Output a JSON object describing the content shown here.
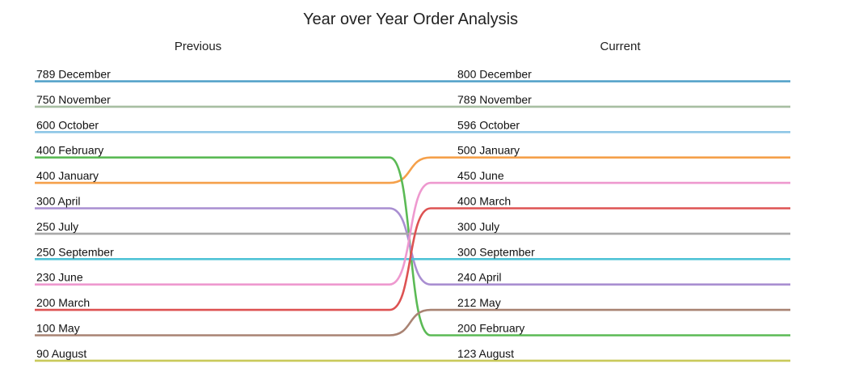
{
  "chart_data": {
    "type": "slope",
    "title": "Year over Year Order Analysis",
    "left_header": "Previous",
    "right_header": "Current",
    "series": [
      {
        "name": "December",
        "previous": 789,
        "current": 800,
        "color": "#4e9fc7"
      },
      {
        "name": "November",
        "previous": 750,
        "current": 789,
        "color": "#a7bea2"
      },
      {
        "name": "October",
        "previous": 600,
        "current": 596,
        "color": "#8dc6e6"
      },
      {
        "name": "January",
        "previous": 400,
        "current": 500,
        "color": "#f5a04a"
      },
      {
        "name": "February",
        "previous": 400,
        "current": 200,
        "color": "#5bba55"
      },
      {
        "name": "April",
        "previous": 300,
        "current": 240,
        "color": "#a98ed1"
      },
      {
        "name": "July",
        "previous": 250,
        "current": 300,
        "color": "#a8a8a8"
      },
      {
        "name": "September",
        "previous": 250,
        "current": 300,
        "color": "#4fc3d6"
      },
      {
        "name": "June",
        "previous": 230,
        "current": 450,
        "color": "#ee99cf"
      },
      {
        "name": "March",
        "previous": 200,
        "current": 400,
        "color": "#dd5252"
      },
      {
        "name": "May",
        "previous": 100,
        "current": 212,
        "color": "#a98373"
      },
      {
        "name": "August",
        "previous": 90,
        "current": 123,
        "color": "#c9c95a"
      }
    ],
    "left_order": [
      "December",
      "November",
      "October",
      "February",
      "January",
      "April",
      "July",
      "September",
      "June",
      "March",
      "May",
      "August"
    ],
    "right_order": [
      "December",
      "November",
      "October",
      "January",
      "June",
      "March",
      "July",
      "September",
      "April",
      "May",
      "February",
      "August"
    ]
  }
}
